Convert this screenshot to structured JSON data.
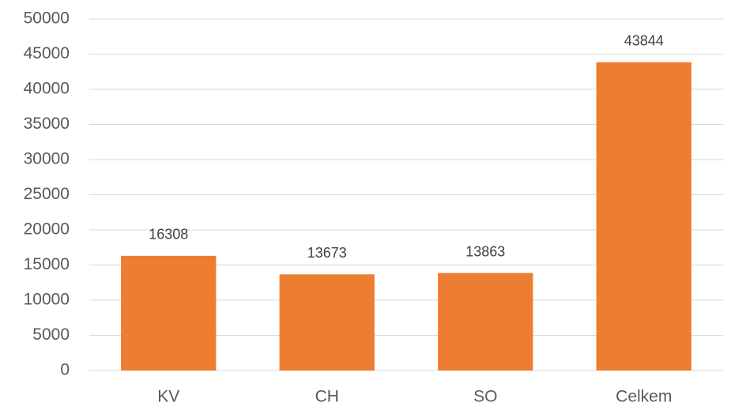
{
  "chart_data": {
    "type": "bar",
    "categories": [
      "KV",
      "CH",
      "SO",
      "Celkem"
    ],
    "values": [
      16308,
      13673,
      13863,
      43844
    ],
    "color": "#ed7d31",
    "ylim": [
      0,
      50000
    ],
    "yticks": [
      0,
      5000,
      10000,
      15000,
      20000,
      25000,
      30000,
      35000,
      40000,
      45000,
      50000
    ],
    "grid": true,
    "data_labels": true
  }
}
